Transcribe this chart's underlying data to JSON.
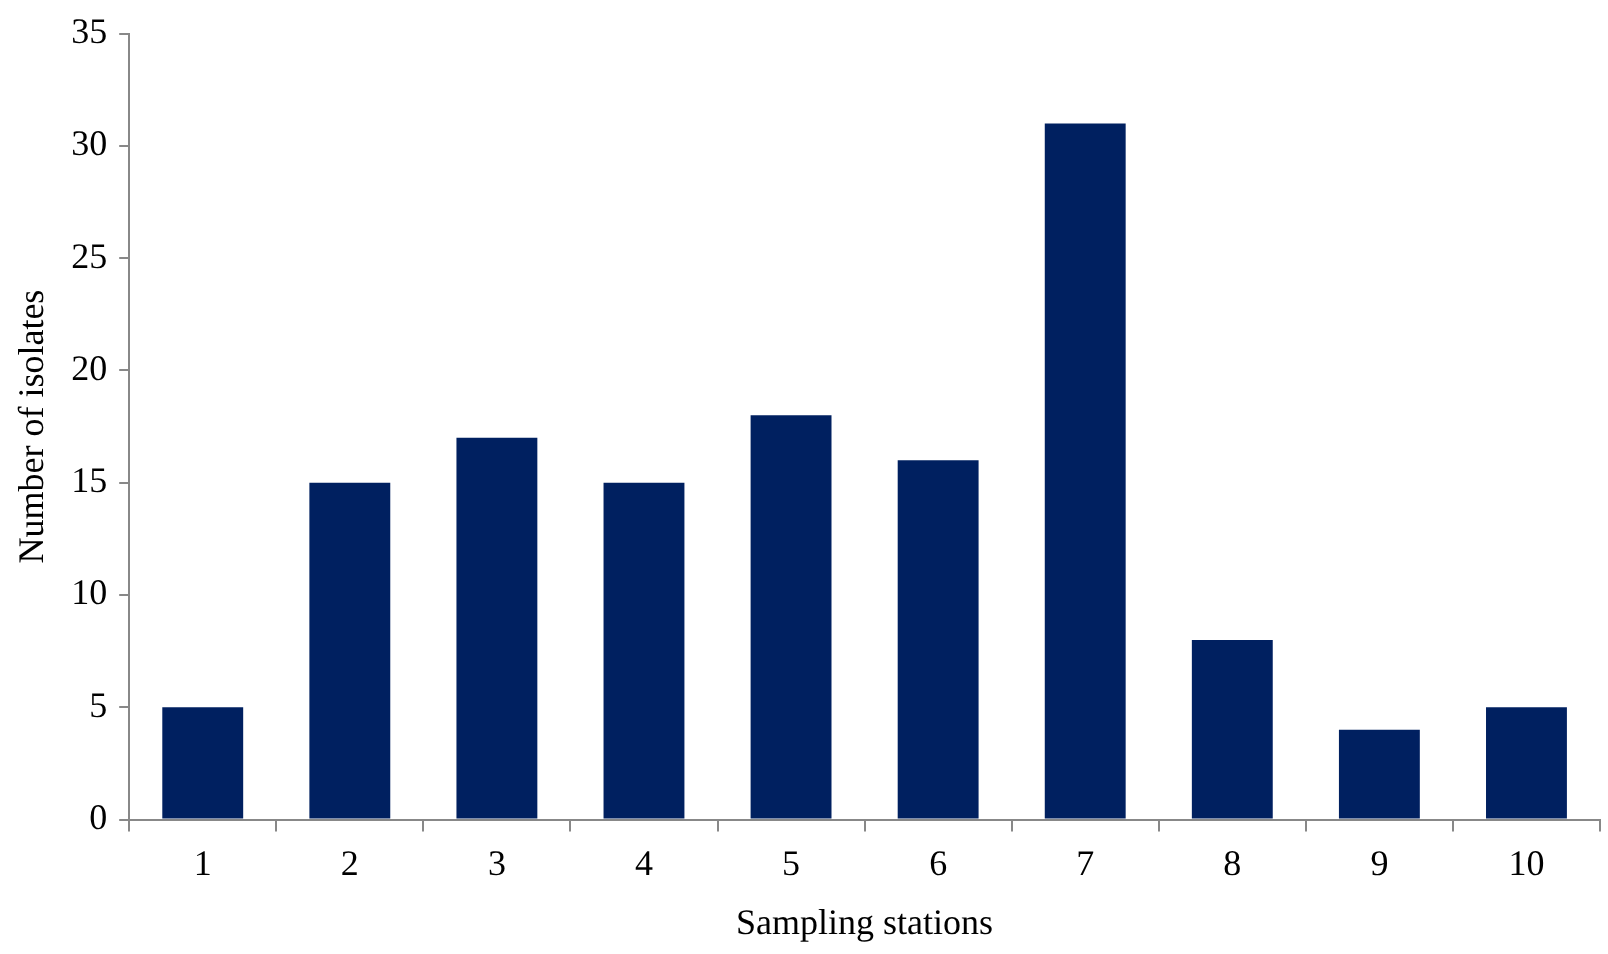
{
  "chart_data": {
    "type": "bar",
    "xlabel": "Sampling stations",
    "ylabel": "Number of isolates",
    "categories": [
      "1",
      "2",
      "3",
      "4",
      "5",
      "6",
      "7",
      "8",
      "9",
      "10"
    ],
    "values": [
      5,
      15,
      17,
      15,
      18,
      16,
      31,
      8,
      4,
      5
    ],
    "color": "#002060",
    "ylim": [
      0,
      35
    ],
    "yticks": [
      0,
      5,
      10,
      15,
      20,
      25,
      30,
      35
    ],
    "grid": false,
    "legend": false
  }
}
